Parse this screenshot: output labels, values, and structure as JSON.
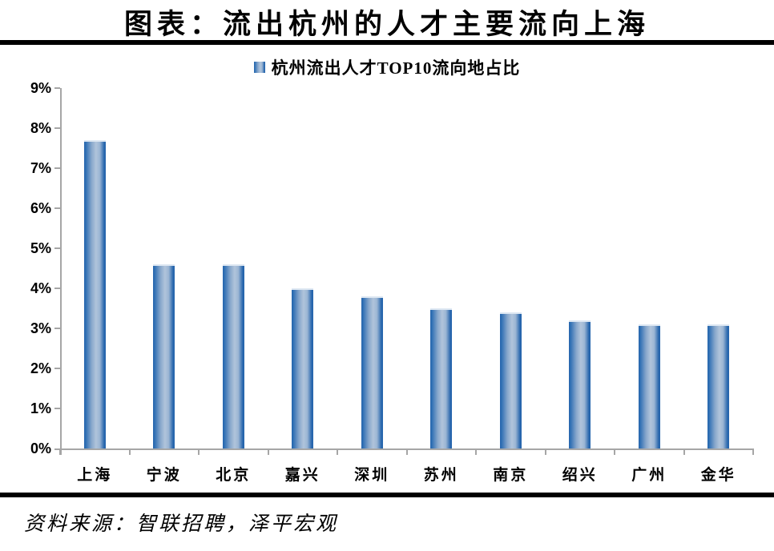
{
  "header": {
    "title": "图表：流出杭州的人才主要流向上海"
  },
  "legend": {
    "label": "杭州流出人才TOP10流向地占比"
  },
  "footer": {
    "source": "资料来源：智联招聘，泽平宏观"
  },
  "chart_data": {
    "type": "bar",
    "title": "杭州流出人才TOP10流向地占比",
    "categories": [
      "上海",
      "宁波",
      "北京",
      "嘉兴",
      "深圳",
      "苏州",
      "南京",
      "绍兴",
      "广州",
      "金华"
    ],
    "values": [
      7.7,
      4.6,
      4.6,
      4.0,
      3.8,
      3.5,
      3.4,
      3.2,
      3.1,
      3.1
    ],
    "unit": "%",
    "xlabel": "",
    "ylabel": "",
    "ylim": [
      0,
      9
    ],
    "ytick_step": 1,
    "ytick_labels": [
      "0%",
      "1%",
      "2%",
      "3%",
      "4%",
      "5%",
      "6%",
      "7%",
      "8%",
      "9%"
    ],
    "grid": false,
    "legend_position": "top-center",
    "colors": {
      "bar_edge": "#2766ad",
      "bar_mid": "#b0c4db",
      "bar_top_highlight": "#dde7f2",
      "axis": "#a6a6a6",
      "text": "#000000",
      "rule": "#000000"
    }
  }
}
